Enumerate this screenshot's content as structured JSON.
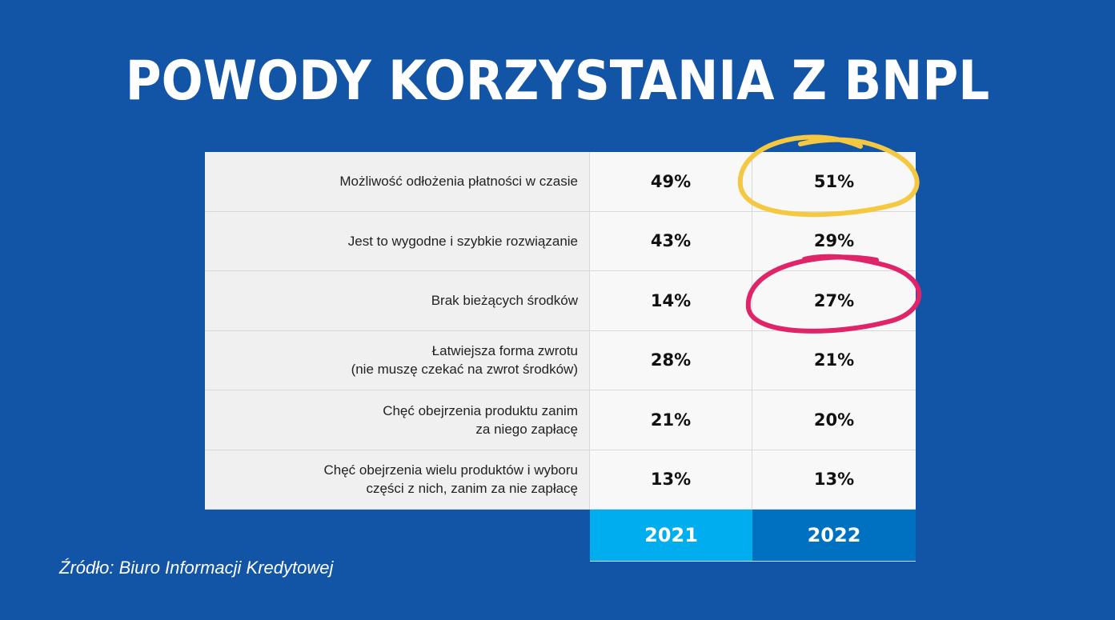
{
  "title": "POWODY KORZYSTANIA Z BNPL",
  "source": "Źródło: Biuro Informacji Kredytowej",
  "colors": {
    "background": "#1254a5",
    "year_2021": "#00aeef",
    "year_2022": "#0070c0",
    "highlight_yellow": "#f5c842",
    "highlight_pink": "#e0246a"
  },
  "chart_data": {
    "type": "table",
    "columns": [
      "2021",
      "2022"
    ],
    "rows": [
      {
        "label_lines": [
          "Możliwość odłożenia płatności w czasie"
        ],
        "values": [
          "49%",
          "51%"
        ]
      },
      {
        "label_lines": [
          "Jest to wygodne i szybkie rozwiązanie"
        ],
        "values": [
          "43%",
          "29%"
        ]
      },
      {
        "label_lines": [
          "Brak bieżących środków"
        ],
        "values": [
          "14%",
          "27%"
        ]
      },
      {
        "label_lines": [
          "Łatwiejsza forma zwrotu",
          "(nie muszę czekać na zwrot środków)"
        ],
        "values": [
          "28%",
          "21%"
        ]
      },
      {
        "label_lines": [
          "Chęć obejrzenia produktu zanim",
          "za niego zapłacę"
        ],
        "values": [
          "21%",
          "20%"
        ]
      },
      {
        "label_lines": [
          "Chęć obejrzenia wielu produktów i wyboru",
          "części z nich, zanim za nie zapłacę"
        ],
        "values": [
          "13%",
          "13%"
        ]
      }
    ],
    "highlighted": [
      {
        "row": 0,
        "column": "2022",
        "color": "yellow"
      },
      {
        "row": 2,
        "column": "2022",
        "color": "pink"
      }
    ]
  }
}
